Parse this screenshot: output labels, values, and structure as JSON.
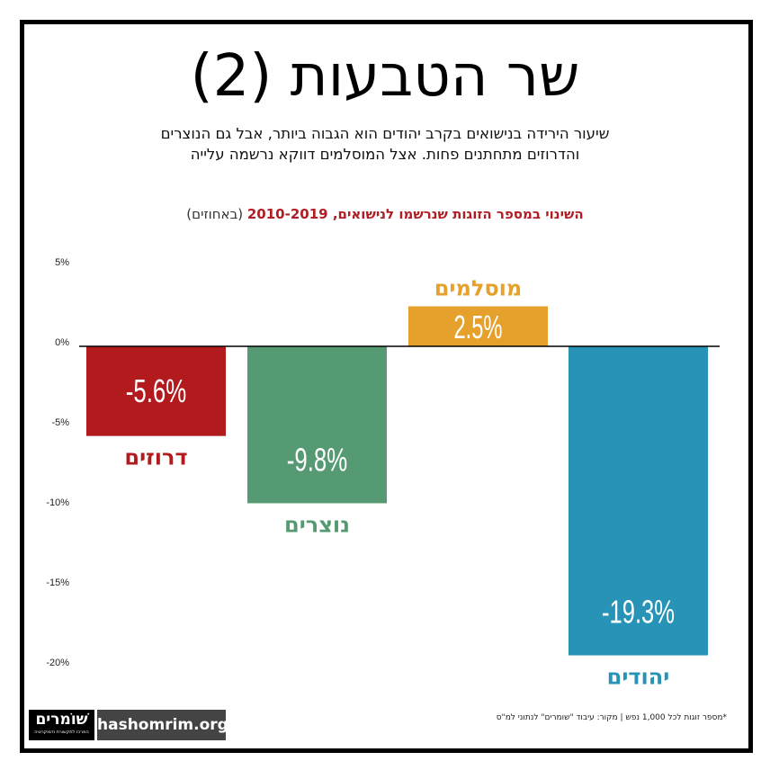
{
  "title": "שר הטבעות (2)",
  "subtitle_lines": [
    "שיעור הירידה בנישואים בקרב יהודים הוא הגבוה ביותר, אבל גם הנוצרים",
    "והדרוזים מתחתנים פחות. אצל המוסלמים דווקא נרשמה עלייה"
  ],
  "chart_title_highlight": "השינוי במספר הזוגות שנרשמו לנישואים, 2010-2019",
  "chart_title_rest": " (באחוזים)",
  "footnote": "*מספר זוגות לכל 1,000 נפש | מקור: עיבוד \"שומרים\" לנתוני למ\"ס",
  "logo": {
    "name": "שׁוֹמרים",
    "tagline": "המרכז לתקשורת ודמוקרטיה"
  },
  "site": "hashomrim.org",
  "chart_data": {
    "type": "bar",
    "categories": [
      "דרוזים",
      "נוצרים",
      "מוסלמים",
      "יהודים"
    ],
    "values": [
      -5.6,
      -9.8,
      2.5,
      -19.3
    ],
    "value_labels": [
      "-5.6%",
      "-9.8%",
      "2.5%",
      "-19.3%"
    ],
    "colors": [
      "#b21a1d",
      "#559a72",
      "#e5a12c",
      "#2693b7"
    ],
    "y_ticks": [
      5,
      0,
      -5,
      -10,
      -15,
      -20
    ],
    "y_tick_labels": [
      "5%",
      "0%",
      "-5%",
      "-10%",
      "-15%",
      "-20%"
    ],
    "ylim": [
      -20,
      5
    ],
    "grid": false
  }
}
